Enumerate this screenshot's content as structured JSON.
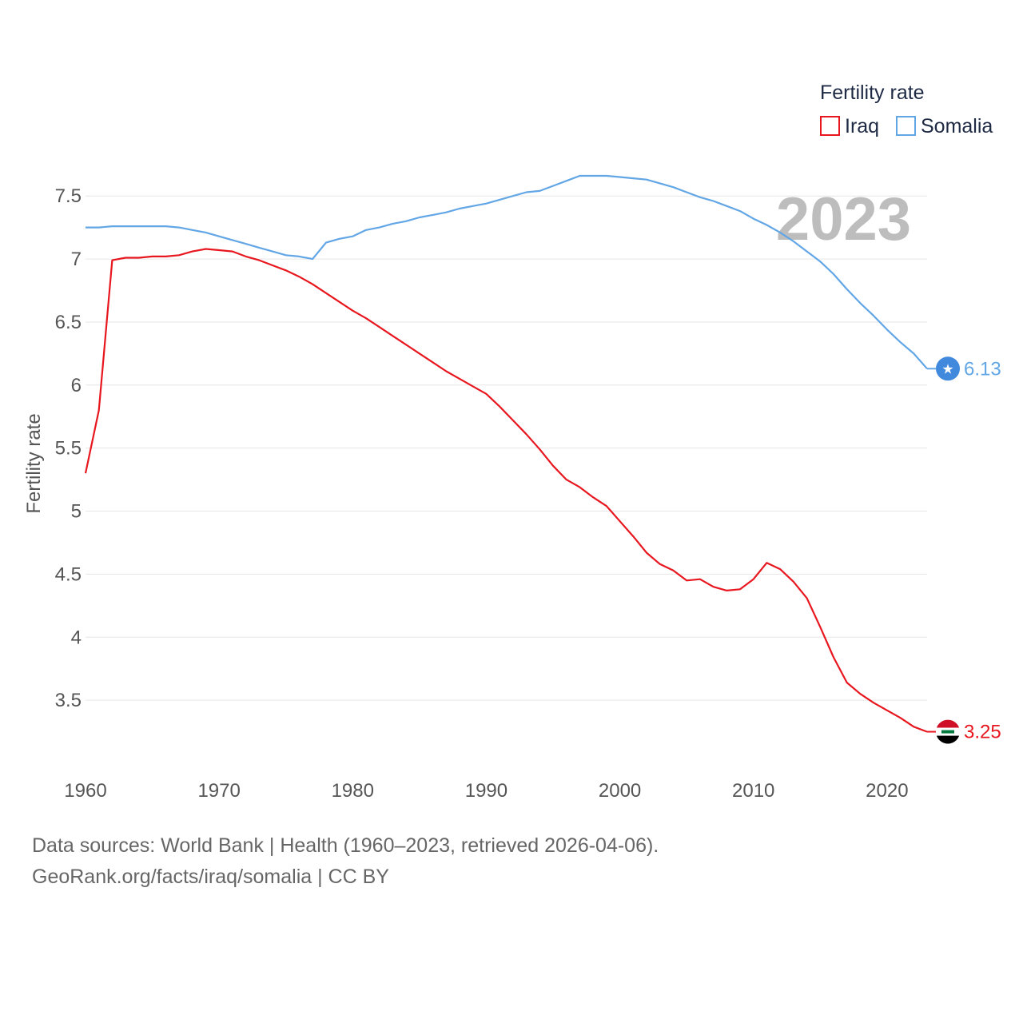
{
  "chart_data": {
    "type": "line",
    "legend_title": "Fertility rate",
    "ylabel": "Fertility rate",
    "xlabel": "",
    "year_label": "2023",
    "xlim": [
      1960,
      2023
    ],
    "ylim": [
      3.0,
      7.85
    ],
    "x_ticks": [
      1960,
      1970,
      1980,
      1990,
      2000,
      2010,
      2020
    ],
    "y_ticks": [
      3.5,
      4,
      4.5,
      5,
      5.5,
      6,
      6.5,
      7,
      7.5
    ],
    "y_tick_labels": [
      "3.5",
      "4",
      "4.5",
      "5",
      "5.5",
      "6",
      "6.5",
      "7",
      "7.5"
    ],
    "grid": true,
    "legend_position": "top-right",
    "x": [
      1960,
      1961,
      1962,
      1963,
      1964,
      1965,
      1966,
      1967,
      1968,
      1969,
      1970,
      1971,
      1972,
      1973,
      1974,
      1975,
      1976,
      1977,
      1978,
      1979,
      1980,
      1981,
      1982,
      1983,
      1984,
      1985,
      1986,
      1987,
      1988,
      1989,
      1990,
      1991,
      1992,
      1993,
      1994,
      1995,
      1996,
      1997,
      1998,
      1999,
      2000,
      2001,
      2002,
      2003,
      2004,
      2005,
      2006,
      2007,
      2008,
      2009,
      2010,
      2011,
      2012,
      2013,
      2014,
      2015,
      2016,
      2017,
      2018,
      2019,
      2020,
      2021,
      2022,
      2023
    ],
    "series": [
      {
        "name": "Iraq",
        "color": "#e8171f",
        "end_label": "3.25",
        "marker_icon": "iraq-flag-icon",
        "values": [
          5.3,
          5.8,
          6.99,
          7.01,
          7.01,
          7.02,
          7.02,
          7.03,
          7.06,
          7.08,
          7.07,
          7.06,
          7.02,
          6.99,
          6.95,
          6.91,
          6.86,
          6.8,
          6.73,
          6.66,
          6.59,
          6.53,
          6.46,
          6.39,
          6.32,
          6.25,
          6.18,
          6.11,
          6.05,
          5.99,
          5.93,
          5.83,
          5.72,
          5.61,
          5.49,
          5.36,
          5.25,
          5.19,
          5.11,
          5.04,
          4.92,
          4.8,
          4.67,
          4.58,
          4.53,
          4.45,
          4.46,
          4.4,
          4.37,
          4.38,
          4.46,
          4.59,
          4.54,
          4.44,
          4.31,
          4.08,
          3.84,
          3.64,
          3.55,
          3.48,
          3.42,
          3.36,
          3.29,
          3.25
        ]
      },
      {
        "name": "Somalia",
        "color": "#62a6e6",
        "end_label": "6.13",
        "marker_icon": "somalia-flag-icon",
        "values": [
          7.25,
          7.25,
          7.26,
          7.26,
          7.26,
          7.26,
          7.26,
          7.25,
          7.23,
          7.21,
          7.18,
          7.15,
          7.12,
          7.09,
          7.06,
          7.03,
          7.02,
          7.0,
          7.13,
          7.16,
          7.18,
          7.23,
          7.25,
          7.28,
          7.3,
          7.33,
          7.35,
          7.37,
          7.4,
          7.42,
          7.44,
          7.47,
          7.5,
          7.53,
          7.54,
          7.58,
          7.62,
          7.66,
          7.66,
          7.66,
          7.65,
          7.64,
          7.63,
          7.6,
          7.57,
          7.53,
          7.49,
          7.46,
          7.42,
          7.38,
          7.32,
          7.27,
          7.21,
          7.14,
          7.06,
          6.98,
          6.88,
          6.76,
          6.65,
          6.55,
          6.44,
          6.34,
          6.25,
          6.13
        ]
      }
    ]
  },
  "sources": {
    "line1": "Data sources: World Bank | Health (1960–2023, retrieved 2026-04-06).",
    "line2": "GeoRank.org/facts/iraq/somalia | CC BY"
  }
}
